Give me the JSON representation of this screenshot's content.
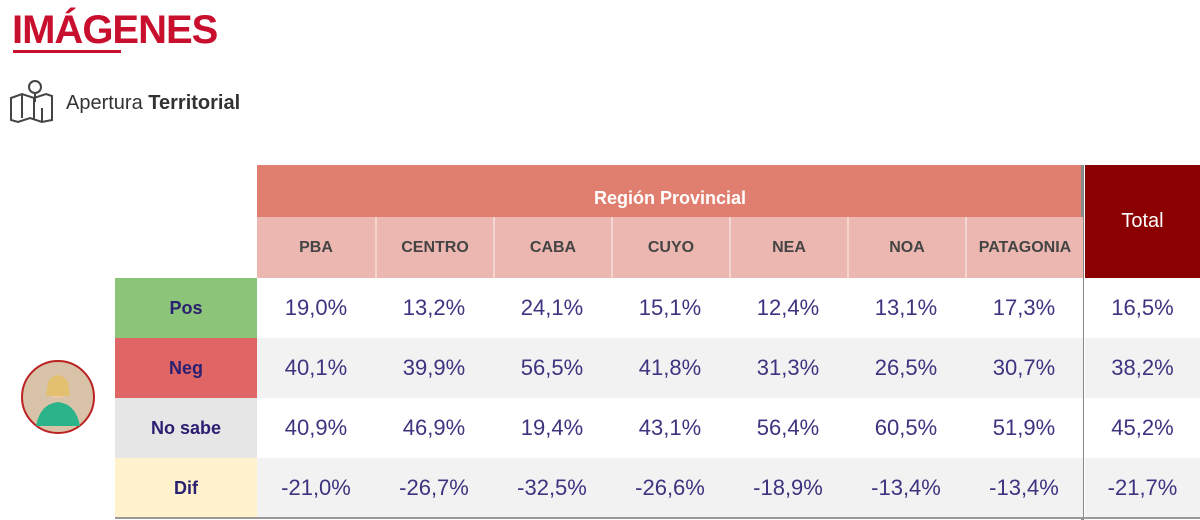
{
  "header": {
    "title": "IMÁGENES",
    "subtitle_light": "Apertura",
    "subtitle_bold": "Territorial"
  },
  "table": {
    "group_header": "Región Provincial",
    "total_header": "Total",
    "columns": [
      "PBA",
      "CENTRO",
      "CABA",
      "CUYO",
      "NEA",
      "NOA",
      "PATAGONIA"
    ],
    "rows": [
      {
        "label": "Pos",
        "cells": [
          "19,0%",
          "13,2%",
          "24,1%",
          "15,1%",
          "12,4%",
          "13,1%",
          "17,3%"
        ],
        "total": "16,5%"
      },
      {
        "label": "Neg",
        "cells": [
          "40,1%",
          "39,9%",
          "56,5%",
          "41,8%",
          "31,3%",
          "26,5%",
          "30,7%"
        ],
        "total": "38,2%"
      },
      {
        "label": "No sabe",
        "cells": [
          "40,9%",
          "46,9%",
          "19,4%",
          "43,1%",
          "56,4%",
          "60,5%",
          "51,9%"
        ],
        "total": "45,2%"
      },
      {
        "label": "Dif",
        "cells": [
          "-21,0%",
          "-26,7%",
          "-32,5%",
          "-26,6%",
          "-18,9%",
          "-13,4%",
          "-13,4%"
        ],
        "total": "-21,7%"
      }
    ]
  }
}
